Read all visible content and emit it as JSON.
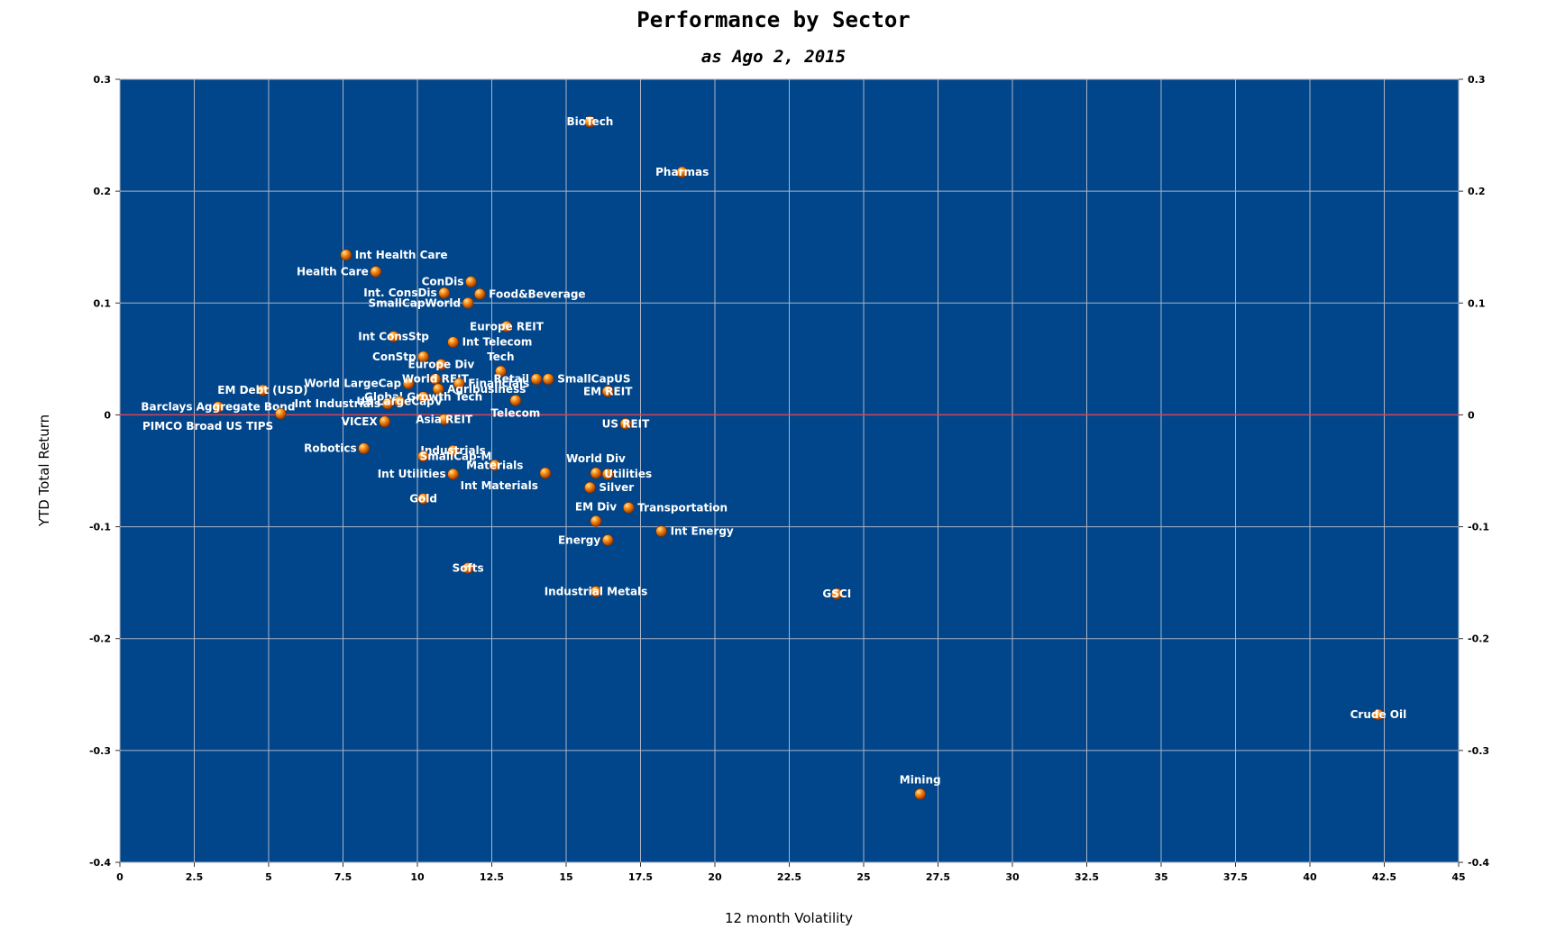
{
  "chart_data": {
    "type": "scatter",
    "title": "Performance by Sector",
    "subtitle": "as Ago 2, 2015",
    "xlabel": "12 month Volatility",
    "ylabel": "YTD Total Return",
    "xlim": [
      0,
      45
    ],
    "ylim": [
      -0.4,
      0.3
    ],
    "x_ticks": [
      0,
      2.5,
      5,
      7.5,
      10,
      12.5,
      15,
      17.5,
      20,
      22.5,
      25,
      27.5,
      30,
      32.5,
      35,
      37.5,
      40,
      42.5,
      45
    ],
    "x_tick_labels": [
      "0",
      "2.5",
      "5",
      "7.5",
      "10",
      "12.5",
      "15",
      "17.5",
      "20",
      "22.5",
      "25",
      "27.5",
      "30",
      "32.5",
      "35",
      "37.5",
      "40",
      "42.5",
      "45"
    ],
    "y_ticks": [
      0.3,
      0.2,
      0.1,
      0,
      -0.1,
      -0.2,
      -0.3,
      -0.4
    ],
    "y_tick_labels": [
      "0.3",
      "0.2",
      "0.1",
      "0",
      "-0.1",
      "-0.2",
      "-0.3",
      "-0.4"
    ],
    "grid": true,
    "reference_line_y": 0,
    "colors": {
      "plot_background": "#01468a",
      "grid": "#aab4c8",
      "zero_line": "#d8435a",
      "marker": "#f07a10",
      "marker_highlight": "#ffd47a",
      "label": "#ffffff"
    },
    "points": [
      {
        "label": "BioTech",
        "x": 15.8,
        "y": 0.262,
        "anchor": "middle"
      },
      {
        "label": "Pharmas",
        "x": 18.9,
        "y": 0.217,
        "anchor": "middle"
      },
      {
        "label": "Int Health Care",
        "x": 7.6,
        "y": 0.143,
        "anchor": "right"
      },
      {
        "label": "Health Care",
        "x": 8.6,
        "y": 0.128,
        "anchor": "left"
      },
      {
        "label": "ConDis",
        "x": 11.8,
        "y": 0.119,
        "anchor": "left"
      },
      {
        "label": "Int. ConsDis",
        "x": 10.9,
        "y": 0.109,
        "anchor": "left"
      },
      {
        "label": "Food&Beverage",
        "x": 12.1,
        "y": 0.108,
        "anchor": "right"
      },
      {
        "label": "SmallCapWorld",
        "x": 11.7,
        "y": 0.1,
        "anchor": "left"
      },
      {
        "label": "Europe REIT",
        "x": 13.0,
        "y": 0.079,
        "anchor": "middle"
      },
      {
        "label": "Int ConsStp",
        "x": 9.2,
        "y": 0.07,
        "anchor": "middle"
      },
      {
        "label": "Int Telecom",
        "x": 11.2,
        "y": 0.065,
        "anchor": "right"
      },
      {
        "label": "Tech",
        "x": 12.8,
        "y": 0.039,
        "anchor": "above"
      },
      {
        "label": "ConStp",
        "x": 10.2,
        "y": 0.052,
        "anchor": "left"
      },
      {
        "label": "Europe Div",
        "x": 10.8,
        "y": 0.045,
        "anchor": "middle"
      },
      {
        "label": "World LargeCap",
        "x": 9.7,
        "y": 0.028,
        "anchor": "left"
      },
      {
        "label": "World REIT",
        "x": 10.6,
        "y": 0.032,
        "anchor": "middle"
      },
      {
        "label": "Financials",
        "x": 11.4,
        "y": 0.028,
        "anchor": "right"
      },
      {
        "label": "Retail",
        "x": 14.0,
        "y": 0.032,
        "anchor": "left"
      },
      {
        "label": "SmallCapUS",
        "x": 14.4,
        "y": 0.032,
        "anchor": "right"
      },
      {
        "label": "Agribusiness",
        "x": 10.7,
        "y": 0.023,
        "anchor": "right"
      },
      {
        "label": "EM REIT",
        "x": 16.4,
        "y": 0.021,
        "anchor": "middle"
      },
      {
        "label": "Global Growth Tech",
        "x": 10.2,
        "y": 0.016,
        "anchor": "middle"
      },
      {
        "label": "Int Industrials",
        "x": 9.0,
        "y": 0.01,
        "anchor": "left"
      },
      {
        "label": "US LargeCapV",
        "x": 9.4,
        "y": 0.012,
        "anchor": "middle"
      },
      {
        "label": "Barclays Aggregate Bond",
        "x": 3.3,
        "y": 0.007,
        "anchor": "middle"
      },
      {
        "label": "EM Debt (USD)",
        "x": 4.8,
        "y": 0.022,
        "anchor": "middle"
      },
      {
        "label": "PIMCO Broad US TIPS",
        "x": 5.4,
        "y": 0.001,
        "anchor": "below-left"
      },
      {
        "label": "Telecom",
        "x": 13.3,
        "y": 0.013,
        "anchor": "below"
      },
      {
        "label": "VICEX",
        "x": 8.9,
        "y": -0.006,
        "anchor": "left"
      },
      {
        "label": "Asia REIT",
        "x": 10.9,
        "y": -0.004,
        "anchor": "middle"
      },
      {
        "label": "US REIT",
        "x": 17.0,
        "y": -0.008,
        "anchor": "middle"
      },
      {
        "label": "Robotics",
        "x": 8.2,
        "y": -0.03,
        "anchor": "left"
      },
      {
        "label": "Industrials",
        "x": 11.2,
        "y": -0.032,
        "anchor": "middle"
      },
      {
        "label": "SmallCap-M",
        "x": 10.2,
        "y": -0.037,
        "anchor": "right-tight"
      },
      {
        "label": "Materials",
        "x": 12.6,
        "y": -0.045,
        "anchor": "middle"
      },
      {
        "label": "Int Utilities",
        "x": 11.2,
        "y": -0.053,
        "anchor": "left"
      },
      {
        "label": "World Div",
        "x": 16.0,
        "y": -0.052,
        "anchor": "above"
      },
      {
        "label": "Utilities",
        "x": 16.4,
        "y": -0.053,
        "anchor": "right-tight"
      },
      {
        "label": "Int Materials",
        "x": 14.3,
        "y": -0.052,
        "anchor": "below-left"
      },
      {
        "label": "Silver",
        "x": 15.8,
        "y": -0.065,
        "anchor": "right"
      },
      {
        "label": "Gold",
        "x": 10.2,
        "y": -0.075,
        "anchor": "middle"
      },
      {
        "label": "EM Div",
        "x": 16.0,
        "y": -0.095,
        "anchor": "above"
      },
      {
        "label": "Transportation",
        "x": 17.1,
        "y": -0.083,
        "anchor": "right"
      },
      {
        "label": "Energy",
        "x": 16.4,
        "y": -0.112,
        "anchor": "left"
      },
      {
        "label": "Int Energy",
        "x": 18.2,
        "y": -0.104,
        "anchor": "right"
      },
      {
        "label": "Softs",
        "x": 11.7,
        "y": -0.137,
        "anchor": "middle"
      },
      {
        "label": "Industrial Metals",
        "x": 16.0,
        "y": -0.158,
        "anchor": "middle"
      },
      {
        "label": "GSCI",
        "x": 24.1,
        "y": -0.16,
        "anchor": "middle"
      },
      {
        "label": "Crude Oil",
        "x": 42.3,
        "y": -0.268,
        "anchor": "middle"
      },
      {
        "label": "Mining",
        "x": 26.9,
        "y": -0.339,
        "anchor": "above"
      }
    ]
  }
}
